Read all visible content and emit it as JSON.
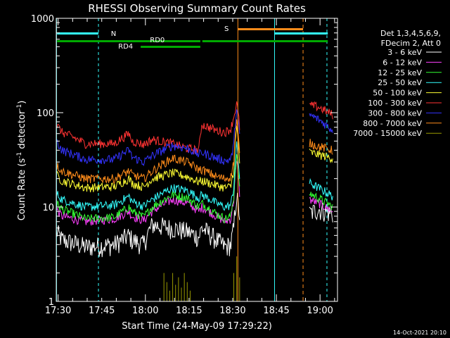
{
  "chart_data": {
    "type": "line",
    "title": "RHESSI Observing Summary Count Rates",
    "xlabel": "Start Time (24-May-09 17:29:22)",
    "ylabel": "Count Rate (s⁻¹ detector⁻¹)",
    "ylabel_main": "Count Rate (s",
    "ylabel_sup1": "-1",
    "ylabel_mid": " detector",
    "ylabel_sup2": "-1",
    "ylabel_end": ")",
    "y_scale": "log",
    "ylim": [
      1,
      1000
    ],
    "y_ticks": [
      {
        "value": 1,
        "label": "1"
      },
      {
        "value": 10,
        "label": "10"
      },
      {
        "value": 100,
        "label": "100"
      },
      {
        "value": 1000,
        "label": "1000"
      }
    ],
    "xlim": [
      "17:29:22",
      "19:06:00"
    ],
    "x_ticks": [
      {
        "minutes": 0.63,
        "label": "17:30"
      },
      {
        "minutes": 15.63,
        "label": "17:45"
      },
      {
        "minutes": 30.63,
        "label": "18:00"
      },
      {
        "minutes": 45.63,
        "label": "18:15"
      },
      {
        "minutes": 60.63,
        "label": "18:30"
      },
      {
        "minutes": 75.63,
        "label": "18:45"
      },
      {
        "minutes": 90.63,
        "label": "19:00"
      }
    ],
    "legend_placement": "right",
    "legend_header": [
      "Det 1,3,4,5,6,9,",
      "FDecim 2, Att 0"
    ],
    "series": [
      {
        "name": "3 - 6 keV",
        "color": "#ffffff",
        "values": [
          [
            0,
            5.5
          ],
          [
            2,
            4.5
          ],
          [
            10,
            3.8
          ],
          [
            20,
            4.0
          ],
          [
            25,
            5.0
          ],
          [
            26,
            4.5
          ],
          [
            30,
            4.0
          ],
          [
            33,
            6.5
          ],
          [
            40,
            6.0
          ],
          [
            45,
            5.5
          ],
          [
            49,
            4.8
          ],
          [
            50,
            6.0
          ],
          [
            55,
            4.5
          ],
          [
            58,
            3.8
          ],
          [
            60,
            4.0
          ],
          [
            61,
            6.0
          ],
          [
            62,
            13.0
          ],
          [
            63,
            8.0
          ]
        ],
        "values2": [
          [
            87,
            8.5
          ],
          [
            90,
            9.5
          ],
          [
            95,
            8.5
          ]
        ]
      },
      {
        "name": "6 - 12 keV",
        "color": "#ff40ff",
        "values": [
          [
            0,
            9.5
          ],
          [
            2,
            8.0
          ],
          [
            10,
            7.0
          ],
          [
            20,
            7.5
          ],
          [
            25,
            9.0
          ],
          [
            26,
            8.0
          ],
          [
            30,
            7.2
          ],
          [
            33,
            9.0
          ],
          [
            40,
            12.0
          ],
          [
            45,
            11.0
          ],
          [
            49,
            9.0
          ],
          [
            50,
            10.0
          ],
          [
            55,
            8.0
          ],
          [
            58,
            7.0
          ],
          [
            60,
            7.5
          ],
          [
            61,
            12.0
          ],
          [
            62,
            30.0
          ],
          [
            63,
            14.0
          ]
        ],
        "values2": [
          [
            87,
            12.0
          ],
          [
            90,
            11.0
          ],
          [
            95,
            9.0
          ]
        ]
      },
      {
        "name": "12 - 25 keV",
        "color": "#33ff33",
        "values": [
          [
            0,
            11.0
          ],
          [
            2,
            9.5
          ],
          [
            10,
            7.5
          ],
          [
            20,
            7.8
          ],
          [
            25,
            10.0
          ],
          [
            26,
            9.0
          ],
          [
            30,
            7.8
          ],
          [
            33,
            10.0
          ],
          [
            40,
            13.5
          ],
          [
            45,
            12.5
          ],
          [
            49,
            10.0
          ],
          [
            50,
            11.0
          ],
          [
            55,
            8.5
          ],
          [
            58,
            7.5
          ],
          [
            60,
            8.0
          ],
          [
            61,
            13.0
          ],
          [
            62,
            35.0
          ],
          [
            63,
            15.0
          ]
        ],
        "values2": [
          [
            87,
            14.0
          ],
          [
            90,
            12.5
          ],
          [
            95,
            10.0
          ]
        ]
      },
      {
        "name": "25 - 50 keV",
        "color": "#33ffff",
        "values": [
          [
            0,
            14.0
          ],
          [
            2,
            12.0
          ],
          [
            10,
            10.0
          ],
          [
            20,
            10.5
          ],
          [
            25,
            13.0
          ],
          [
            26,
            11.5
          ],
          [
            30,
            10.2
          ],
          [
            33,
            12.0
          ],
          [
            40,
            16.0
          ],
          [
            45,
            15.0
          ],
          [
            49,
            12.5
          ],
          [
            50,
            13.5
          ],
          [
            55,
            11.0
          ],
          [
            58,
            10.0
          ],
          [
            60,
            10.5
          ],
          [
            61,
            16.0
          ],
          [
            62,
            45.0
          ],
          [
            63,
            20.0
          ]
        ],
        "values2": [
          [
            87,
            18.0
          ],
          [
            90,
            16.0
          ],
          [
            95,
            13.0
          ]
        ]
      },
      {
        "name": "50 - 100 keV",
        "color": "#ffff33",
        "values": [
          [
            0,
            22.0
          ],
          [
            2,
            19.0
          ],
          [
            10,
            16.0
          ],
          [
            20,
            16.5
          ],
          [
            25,
            20.0
          ],
          [
            26,
            18.0
          ],
          [
            30,
            16.2
          ],
          [
            33,
            20.0
          ],
          [
            40,
            23.0
          ],
          [
            45,
            21.0
          ],
          [
            49,
            18.5
          ],
          [
            50,
            19.0
          ],
          [
            55,
            17.0
          ],
          [
            58,
            16.0
          ],
          [
            60,
            16.5
          ],
          [
            61,
            25.0
          ],
          [
            62,
            70.0
          ],
          [
            63,
            30.0
          ]
        ],
        "values2": [
          [
            87,
            38.0
          ],
          [
            90,
            36.0
          ],
          [
            95,
            33.0
          ]
        ]
      },
      {
        "name": "100 - 300 keV",
        "color": "#ff3333",
        "values": [
          [
            0,
            75.0
          ],
          [
            2,
            62.0
          ],
          [
            10,
            47.0
          ],
          [
            20,
            47.0
          ],
          [
            25,
            60.0
          ],
          [
            26,
            50.0
          ],
          [
            30,
            46.0
          ],
          [
            33,
            52.0
          ],
          [
            40,
            47.0
          ],
          [
            45,
            42.0
          ],
          [
            49,
            40.0
          ],
          [
            50,
            75.0
          ],
          [
            55,
            65.0
          ],
          [
            58,
            62.0
          ],
          [
            60,
            68.0
          ],
          [
            61,
            90.0
          ],
          [
            62,
            125.0
          ],
          [
            63,
            70.0
          ]
        ],
        "values2": [
          [
            87,
            120.0
          ],
          [
            90,
            115.0
          ],
          [
            95,
            95.0
          ]
        ]
      },
      {
        "name": "300 - 800 keV",
        "color": "#3333ff",
        "values": [
          [
            0,
            50.0
          ],
          [
            2,
            40.0
          ],
          [
            10,
            32.0
          ],
          [
            20,
            32.0
          ],
          [
            25,
            40.0
          ],
          [
            26,
            34.0
          ],
          [
            30,
            30.0
          ],
          [
            33,
            35.0
          ],
          [
            40,
            45.0
          ],
          [
            45,
            42.0
          ],
          [
            49,
            36.0
          ],
          [
            50,
            38.0
          ],
          [
            55,
            33.0
          ],
          [
            58,
            31.0
          ],
          [
            60,
            32.0
          ],
          [
            61,
            45.0
          ],
          [
            62,
            110.0
          ],
          [
            63,
            55.0
          ]
        ],
        "values2": [
          [
            87,
            95.0
          ],
          [
            90,
            85.0
          ],
          [
            95,
            65.0
          ]
        ]
      },
      {
        "name": "800 - 7000 keV",
        "color": "#ff8c1a",
        "values": [
          [
            0,
            28.0
          ],
          [
            2,
            24.0
          ],
          [
            10,
            20.0
          ],
          [
            20,
            20.0
          ],
          [
            25,
            24.0
          ],
          [
            26,
            22.0
          ],
          [
            30,
            20.0
          ],
          [
            33,
            24.0
          ],
          [
            40,
            33.0
          ],
          [
            45,
            30.0
          ],
          [
            49,
            25.0
          ],
          [
            50,
            25.0
          ],
          [
            55,
            21.0
          ],
          [
            58,
            20.0
          ],
          [
            60,
            21.0
          ],
          [
            61,
            30.0
          ],
          [
            62,
            80.0
          ],
          [
            63,
            35.0
          ]
        ],
        "values2": [
          [
            87,
            48.0
          ],
          [
            90,
            44.0
          ],
          [
            95,
            40.0
          ]
        ]
      },
      {
        "name": "7000 - 15000 keV",
        "color": "#999900",
        "values": [
          [
            37,
            2.0
          ],
          [
            38,
            1.6
          ],
          [
            39,
            1.3
          ],
          [
            40,
            2.0
          ],
          [
            41,
            1.5
          ],
          [
            42,
            1.8
          ],
          [
            43,
            1.4
          ],
          [
            44,
            2.0
          ],
          [
            45,
            1.6
          ],
          [
            46,
            1.3
          ],
          [
            61,
            2.0
          ],
          [
            62,
            3.0
          ],
          [
            63,
            1.8
          ]
        ],
        "values2": []
      }
    ],
    "annotations": [
      {
        "label": "N",
        "color": "#33ffff"
      },
      {
        "label": "RD0",
        "color": "#00aa00"
      },
      {
        "label": "RD4",
        "color": "#00aa00"
      },
      {
        "label": "S",
        "color": "#ff8c1a"
      }
    ]
  },
  "footer_timestamp": "14-Oct-2021 20:10"
}
